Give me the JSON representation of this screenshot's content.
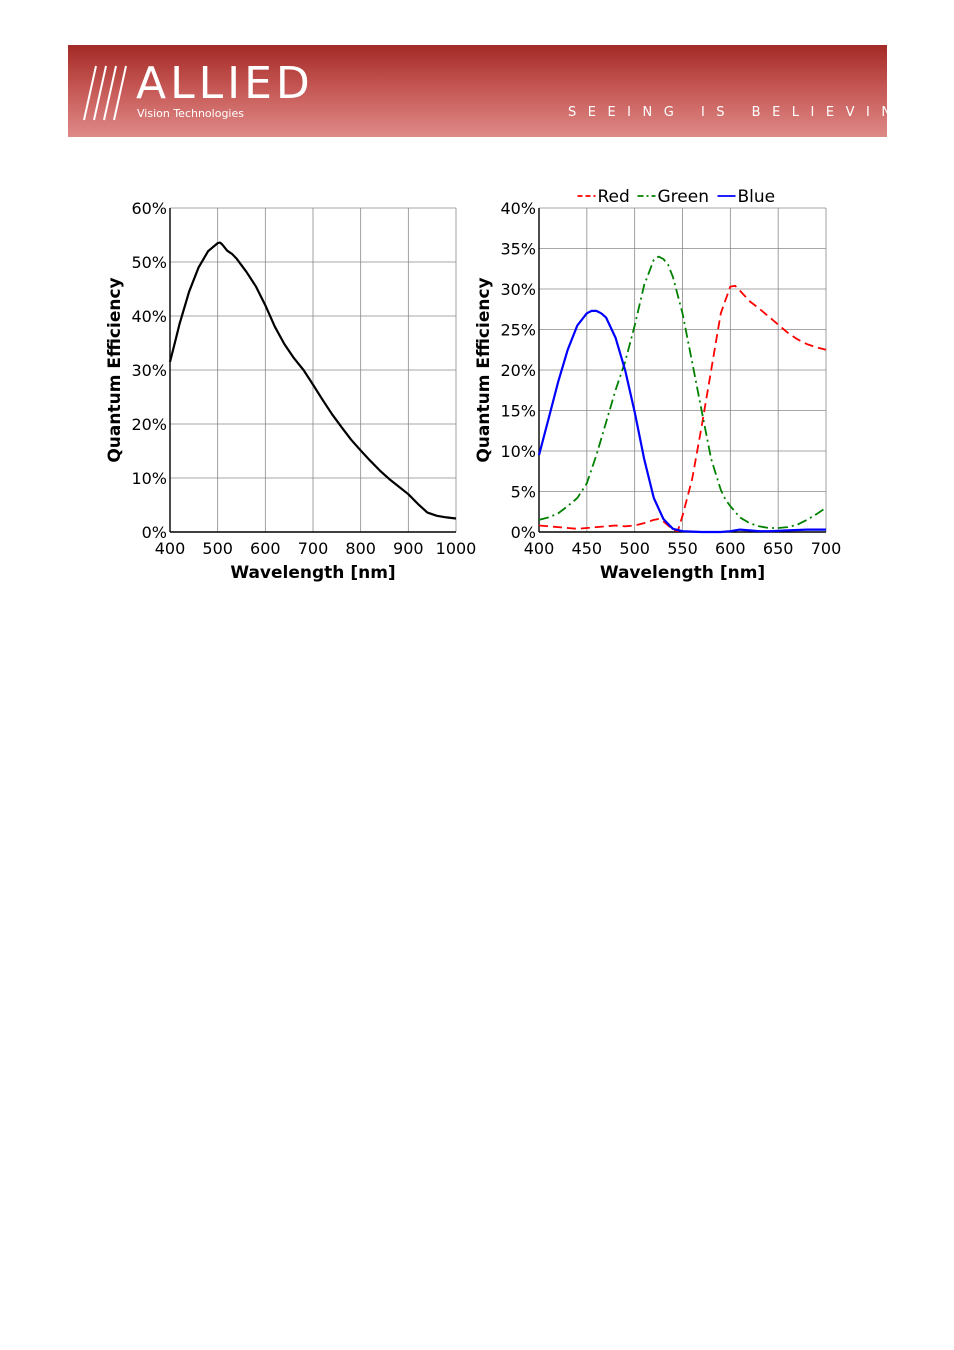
{
  "header": {
    "brand_name": "ALLIED",
    "brand_sub": "Vision Technologies",
    "tagline": "SEEING IS BELIEVING",
    "banner_color": "#b84844"
  },
  "chart_data": [
    {
      "type": "line",
      "xlabel": "Wavelength [nm]",
      "ylabel": "Quantum Efficiency",
      "xlim": [
        400,
        1000
      ],
      "ylim": [
        0,
        60
      ],
      "xticks": [
        "400",
        "500",
        "600",
        "700",
        "800",
        "900",
        "1000"
      ],
      "yticks": [
        "0%",
        "10%",
        "20%",
        "30%",
        "40%",
        "50%",
        "60%"
      ],
      "grid": true,
      "series": [
        {
          "color": "#000000",
          "style": "solid",
          "x": [
            400,
            410,
            420,
            440,
            460,
            480,
            500,
            505,
            510,
            520,
            530,
            540,
            560,
            580,
            600,
            620,
            640,
            660,
            680,
            700,
            720,
            740,
            760,
            780,
            800,
            820,
            840,
            860,
            880,
            900,
            920,
            940,
            960,
            980,
            1000
          ],
          "y": [
            31.5,
            35,
            38.5,
            44.5,
            49,
            52,
            53.5,
            53.6,
            53.2,
            52.1,
            51.5,
            50.6,
            48.2,
            45.5,
            42,
            38,
            34.8,
            32.2,
            30,
            27.3,
            24.5,
            21.8,
            19.4,
            17.1,
            15.1,
            13.2,
            11.4,
            9.8,
            8.4,
            7,
            5.2,
            3.6,
            3,
            2.7,
            2.5
          ]
        }
      ]
    },
    {
      "type": "line",
      "xlabel": "Wavelength [nm]",
      "ylabel": "Quantum Efficiency",
      "xlim": [
        400,
        700
      ],
      "ylim": [
        0,
        40
      ],
      "xticks": [
        "400",
        "450",
        "500",
        "550",
        "600",
        "650",
        "700"
      ],
      "yticks": [
        "0%",
        "5%",
        "10%",
        "15%",
        "20%",
        "25%",
        "30%",
        "35%",
        "40%"
      ],
      "grid": true,
      "legend": "top",
      "series": [
        {
          "name": "Red",
          "color": "#ff0000",
          "style": "dashed",
          "x": [
            400,
            410,
            420,
            430,
            440,
            450,
            460,
            470,
            480,
            490,
            500,
            510,
            520,
            525,
            530,
            540,
            545,
            550,
            560,
            570,
            580,
            590,
            600,
            605,
            610,
            620,
            630,
            640,
            650,
            660,
            670,
            680,
            690,
            700
          ],
          "y": [
            0.8,
            0.7,
            0.6,
            0.5,
            0.4,
            0.5,
            0.6,
            0.7,
            0.8,
            0.7,
            0.8,
            1.1,
            1.5,
            1.6,
            1.3,
            0.3,
            0.1,
            2,
            6.5,
            13,
            20,
            27,
            30.3,
            30.4,
            29.8,
            28.5,
            27.6,
            26.6,
            25.6,
            24.6,
            23.8,
            23.2,
            22.8,
            22.5
          ]
        },
        {
          "name": "Green",
          "color": "#008000",
          "style": "dashdot",
          "x": [
            400,
            410,
            420,
            430,
            440,
            450,
            460,
            470,
            480,
            490,
            500,
            510,
            520,
            525,
            530,
            535,
            540,
            550,
            560,
            570,
            580,
            590,
            595,
            600,
            610,
            620,
            630,
            640,
            650,
            660,
            670,
            680,
            690,
            700
          ],
          "y": [
            1.5,
            1.8,
            2.3,
            3.2,
            4.2,
            6,
            9.5,
            13.5,
            17.5,
            21,
            25.5,
            30.5,
            33.6,
            34,
            33.7,
            33,
            31.5,
            27,
            21,
            15,
            9,
            5.2,
            4,
            3.2,
            1.8,
            1.1,
            0.7,
            0.5,
            0.5,
            0.6,
            0.9,
            1.5,
            2.2,
            3
          ]
        },
        {
          "name": "Blue",
          "color": "#0000ff",
          "style": "solid",
          "x": [
            400,
            410,
            420,
            430,
            440,
            450,
            455,
            460,
            465,
            470,
            480,
            490,
            500,
            510,
            520,
            530,
            540,
            550,
            560,
            570,
            580,
            590,
            600,
            610,
            620,
            630,
            640,
            650,
            660,
            670,
            680,
            690,
            700
          ],
          "y": [
            9.5,
            14,
            18.5,
            22.5,
            25.5,
            27,
            27.3,
            27.3,
            27,
            26.5,
            24,
            20,
            14.8,
            9,
            4.2,
            1.6,
            0.4,
            0.1,
            0.05,
            0,
            0,
            0,
            0.1,
            0.3,
            0.2,
            0.1,
            0.1,
            0.15,
            0.2,
            0.25,
            0.3,
            0.3,
            0.3
          ]
        }
      ]
    }
  ]
}
